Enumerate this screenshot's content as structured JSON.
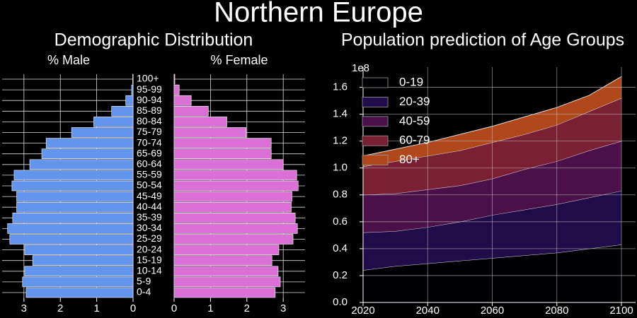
{
  "title": "Northern Europe",
  "chart_data": [
    {
      "type": "pyramid",
      "title": "Demographic Distribution",
      "categories": [
        "0-4",
        "5-9",
        "10-14",
        "15-19",
        "20-24",
        "25-29",
        "30-34",
        "35-39",
        "40-44",
        "45-49",
        "50-54",
        "55-59",
        "60-64",
        "65-69",
        "70-74",
        "75-79",
        "80-84",
        "85-89",
        "90-94",
        "95-99",
        "100+"
      ],
      "series": [
        {
          "name": "% Male",
          "color": "#6495ed",
          "values": [
            2.94,
            3.04,
            2.98,
            2.76,
            2.98,
            3.39,
            3.45,
            3.31,
            3.2,
            3.2,
            3.33,
            3.27,
            2.84,
            2.51,
            2.39,
            1.69,
            1.08,
            0.59,
            0.2,
            0.04,
            0.01
          ]
        },
        {
          "name": "% Female",
          "color": "#da70d6",
          "values": [
            2.78,
            2.92,
            2.86,
            2.69,
            2.88,
            3.27,
            3.39,
            3.33,
            3.22,
            3.24,
            3.41,
            3.37,
            3.0,
            2.67,
            2.67,
            1.98,
            1.45,
            0.94,
            0.47,
            0.14,
            0.02
          ]
        }
      ],
      "xlim": [
        0,
        3.6
      ],
      "xticks": [
        0,
        1,
        2,
        3
      ],
      "grid": true
    },
    {
      "type": "stacked_area",
      "title": "Population prediction of Age Groups",
      "x": [
        2020,
        2030,
        2040,
        2050,
        2060,
        2070,
        2080,
        2090,
        2100
      ],
      "xlim": [
        2020,
        2100
      ],
      "xticks": [
        2020,
        2040,
        2060,
        2080,
        2100
      ],
      "ylim": [
        0,
        1.75
      ],
      "yticks": [
        {
          "value": 0,
          "label": "0.0"
        },
        {
          "value": 0.2,
          "label": "0.2"
        },
        {
          "value": 0.4,
          "label": "0.4"
        },
        {
          "value": 0.6,
          "label": "0.6"
        },
        {
          "value": 0.8,
          "label": "0.8"
        },
        {
          "value": 1,
          "label": "1.0"
        },
        {
          "value": 1.2,
          "label": "1.2"
        },
        {
          "value": 1.4,
          "label": "1.4"
        },
        {
          "value": 1.6,
          "label": "1.6"
        }
      ],
      "y_offset_label": "1e8",
      "legend": "upper left",
      "grid": true,
      "series": [
        {
          "name": "0-19",
          "color": "#000004",
          "values": [
            0.24,
            0.27,
            0.29,
            0.31,
            0.33,
            0.35,
            0.37,
            0.4,
            0.43
          ]
        },
        {
          "name": "20-39",
          "color": "#1f0c48",
          "values": [
            0.28,
            0.26,
            0.27,
            0.29,
            0.32,
            0.34,
            0.36,
            0.38,
            0.4
          ]
        },
        {
          "name": "40-59",
          "color": "#4b1049",
          "values": [
            0.28,
            0.28,
            0.28,
            0.27,
            0.27,
            0.3,
            0.32,
            0.35,
            0.37
          ]
        },
        {
          "name": "60-79",
          "color": "#7a2034",
          "values": [
            0.21,
            0.24,
            0.25,
            0.26,
            0.27,
            0.26,
            0.27,
            0.29,
            0.32
          ]
        },
        {
          "name": "80+",
          "color": "#b0481c",
          "values": [
            0.08,
            0.09,
            0.1,
            0.12,
            0.12,
            0.13,
            0.13,
            0.12,
            0.16
          ]
        }
      ]
    }
  ]
}
